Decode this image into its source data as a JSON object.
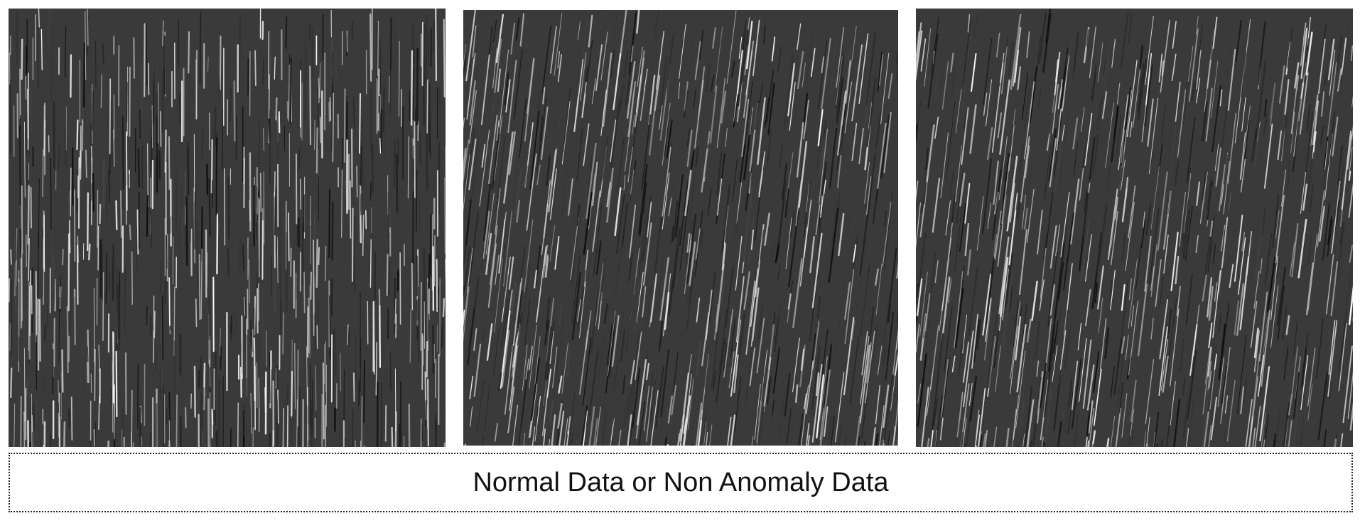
{
  "panels": [
    {
      "id": "panel-1",
      "icon": "vertical-fiber-texture-icon",
      "slant": 0.0,
      "seed": 11
    },
    {
      "id": "panel-2",
      "icon": "slanted-fiber-texture-icon",
      "slant": 0.12,
      "seed": 23
    },
    {
      "id": "panel-3",
      "icon": "slanted-fiber-texture-icon",
      "slant": 0.12,
      "seed": 37
    }
  ],
  "caption": {
    "text": "Normal Data or Non Anomaly Data"
  },
  "colors": {
    "background": "#ffffff",
    "texture_base": "#3a3a3a",
    "caption_text": "#111111",
    "caption_border": "#222222"
  }
}
